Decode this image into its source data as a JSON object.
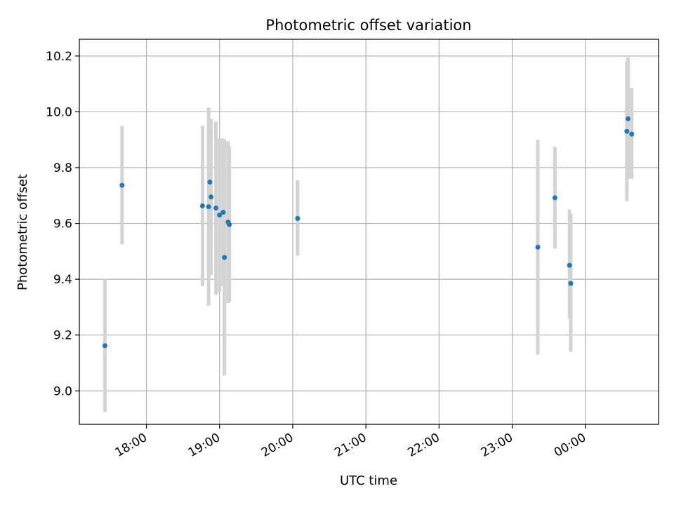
{
  "chart_data": {
    "type": "scatter",
    "title": "Photometric offset variation",
    "xlabel": "UTC time",
    "ylabel": "Photometric offset",
    "grid": true,
    "xlim": [
      "17:05",
      "01:00"
    ],
    "ylim": [
      8.88,
      10.26
    ],
    "x_ticks": [
      "18:00",
      "19:00",
      "20:00",
      "21:00",
      "22:00",
      "23:00",
      "00:00"
    ],
    "y_ticks": [
      9.0,
      9.2,
      9.4,
      9.6,
      9.8,
      10.0,
      10.2
    ],
    "series": [
      {
        "marker_color": "#1f77b4",
        "errorbar_color": "#d3d3d3",
        "points": [
          {
            "time": "17:26",
            "y": 9.162,
            "y_low": 8.925,
            "y_high": 9.4
          },
          {
            "time": "17:40",
            "y": 9.737,
            "y_low": 9.525,
            "y_high": 9.95
          },
          {
            "time": "18:46",
            "y": 9.663,
            "y_low": 9.375,
            "y_high": 9.95
          },
          {
            "time": "18:51",
            "y": 9.66,
            "y_low": 9.305,
            "y_high": 10.015
          },
          {
            "time": "18:52",
            "y": 9.748,
            "y_low": 9.52,
            "y_high": 9.975
          },
          {
            "time": "18:53",
            "y": 9.695,
            "y_low": 9.415,
            "y_high": 9.975
          },
          {
            "time": "18:57",
            "y": 9.655,
            "y_low": 9.345,
            "y_high": 9.965
          },
          {
            "time": "19:00",
            "y": 9.63,
            "y_low": 9.355,
            "y_high": 9.905
          },
          {
            "time": "19:03",
            "y": 9.64,
            "y_low": 9.375,
            "y_high": 9.905
          },
          {
            "time": "19:04",
            "y": 9.478,
            "y_low": 9.055,
            "y_high": 9.9
          },
          {
            "time": "19:07",
            "y": 9.605,
            "y_low": 9.315,
            "y_high": 9.895
          },
          {
            "time": "19:08",
            "y": 9.596,
            "y_low": 9.32,
            "y_high": 9.875
          },
          {
            "time": "20:04",
            "y": 9.618,
            "y_low": 9.485,
            "y_high": 9.755
          },
          {
            "time": "23:21",
            "y": 9.515,
            "y_low": 9.13,
            "y_high": 9.9
          },
          {
            "time": "23:35",
            "y": 9.692,
            "y_low": 9.51,
            "y_high": 9.875
          },
          {
            "time": "23:47",
            "y": 9.45,
            "y_low": 9.26,
            "y_high": 9.65
          },
          {
            "time": "23:48",
            "y": 9.385,
            "y_low": 9.14,
            "y_high": 9.635
          },
          {
            "time": "00:34",
            "y": 9.93,
            "y_low": 9.68,
            "y_high": 10.18
          },
          {
            "time": "00:35",
            "y": 9.975,
            "y_low": 9.76,
            "y_high": 10.195
          },
          {
            "time": "00:38",
            "y": 9.92,
            "y_low": 9.76,
            "y_high": 10.085
          }
        ]
      }
    ]
  }
}
